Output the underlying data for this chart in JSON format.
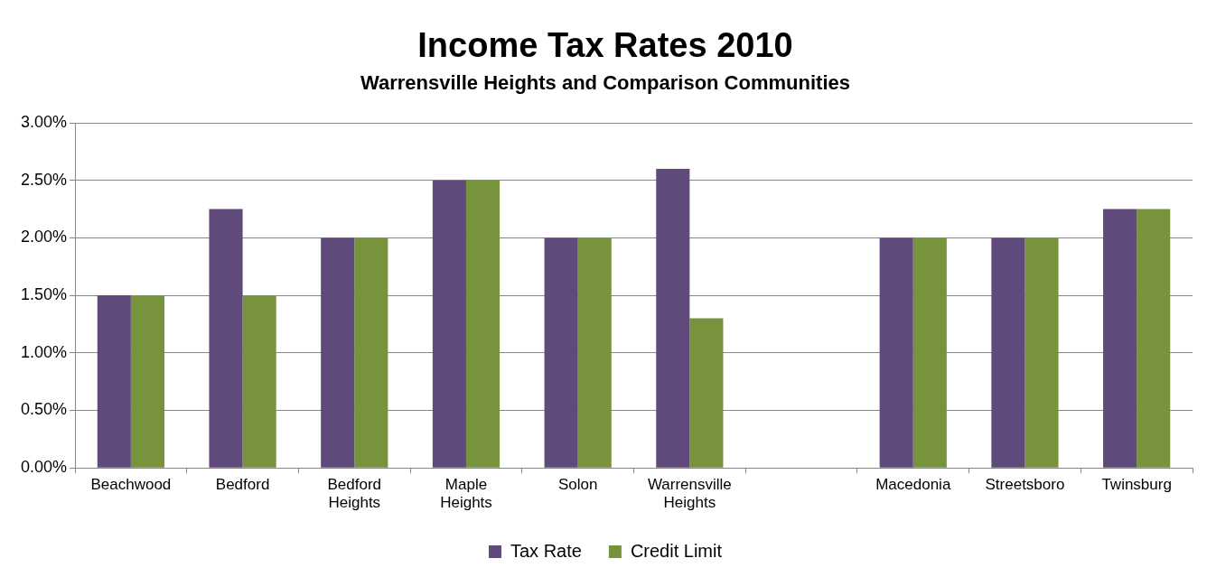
{
  "chart_data": {
    "type": "bar",
    "title": "Income Tax Rates 2010",
    "subtitle": "Warrensville Heights and Comparison Communities",
    "categories": [
      "Beachwood",
      "Bedford",
      "Bedford Heights",
      "Maple Heights",
      "Solon",
      "Warrensville Heights",
      null,
      "Macedonia",
      "Streetsboro",
      "Twinsburg"
    ],
    "series": [
      {
        "name": "Tax Rate",
        "color": "#604a7b",
        "values": [
          1.5,
          2.25,
          2,
          2.5,
          2,
          2.6,
          null,
          2,
          2,
          2.25
        ]
      },
      {
        "name": "Credit Limit",
        "color": "#77933c",
        "values": [
          1.5,
          1.5,
          2,
          2.5,
          2,
          1.3,
          null,
          2,
          2,
          2.25
        ]
      }
    ],
    "ylim": [
      0,
      3
    ],
    "yticks": [
      {
        "value": 0,
        "label": "0.00%"
      },
      {
        "value": 0.5,
        "label": "0.50%"
      },
      {
        "value": 1,
        "label": "1.00%"
      },
      {
        "value": 1.5,
        "label": "1.50%"
      },
      {
        "value": 2,
        "label": "2.00%"
      },
      {
        "value": 2.5,
        "label": "2.50%"
      },
      {
        "value": 3,
        "label": "3.00%"
      }
    ],
    "grid": "y",
    "legend": "bottom"
  }
}
